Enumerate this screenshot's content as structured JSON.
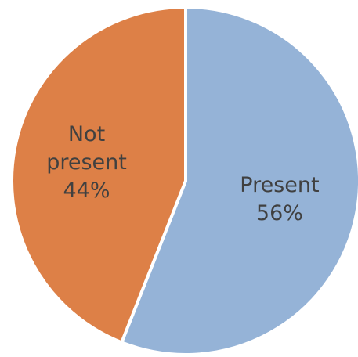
{
  "chart_data": {
    "type": "pie",
    "title": "",
    "start_angle_deg": 0,
    "direction": "clockwise",
    "slices": [
      {
        "name": "Present",
        "label_lines": [
          "Present",
          "56%"
        ],
        "value": 56,
        "color": "#95B3D7"
      },
      {
        "name": "Not present",
        "label_lines": [
          "Not",
          "present",
          "44%"
        ],
        "value": 44,
        "color": "#DD8047"
      }
    ],
    "slice_border_color": "#FFFFFF",
    "label_color": "#404040",
    "legend": "none"
  }
}
